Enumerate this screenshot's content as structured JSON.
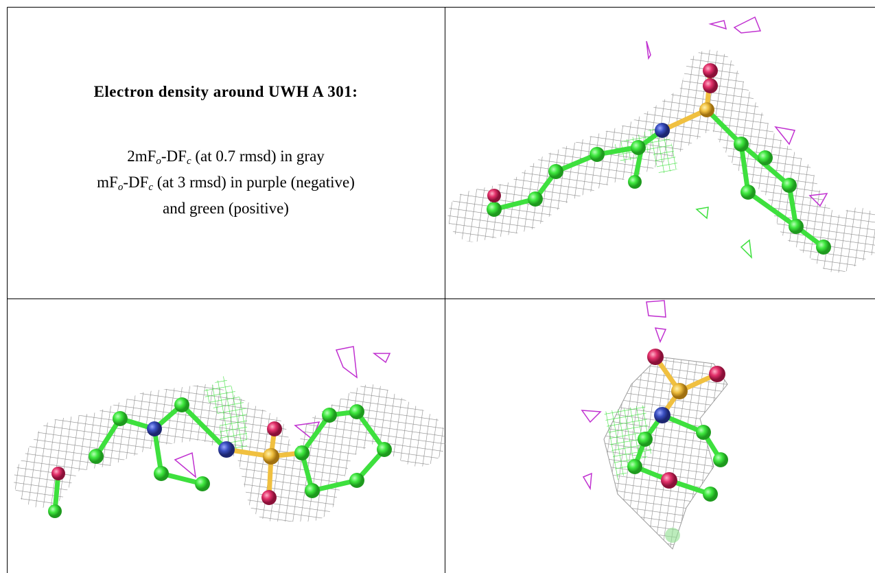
{
  "title": "Electron density around UWH A 301:",
  "legend": {
    "lines": [
      [
        "2mF",
        "o",
        "-DF",
        "c",
        " (at 0.7 rmsd) in gray"
      ],
      [
        "mF",
        "o",
        "-DF",
        "c",
        " (at 3 rmsd) in purple (negative)"
      ],
      [
        "and green (positive)"
      ]
    ]
  }
}
